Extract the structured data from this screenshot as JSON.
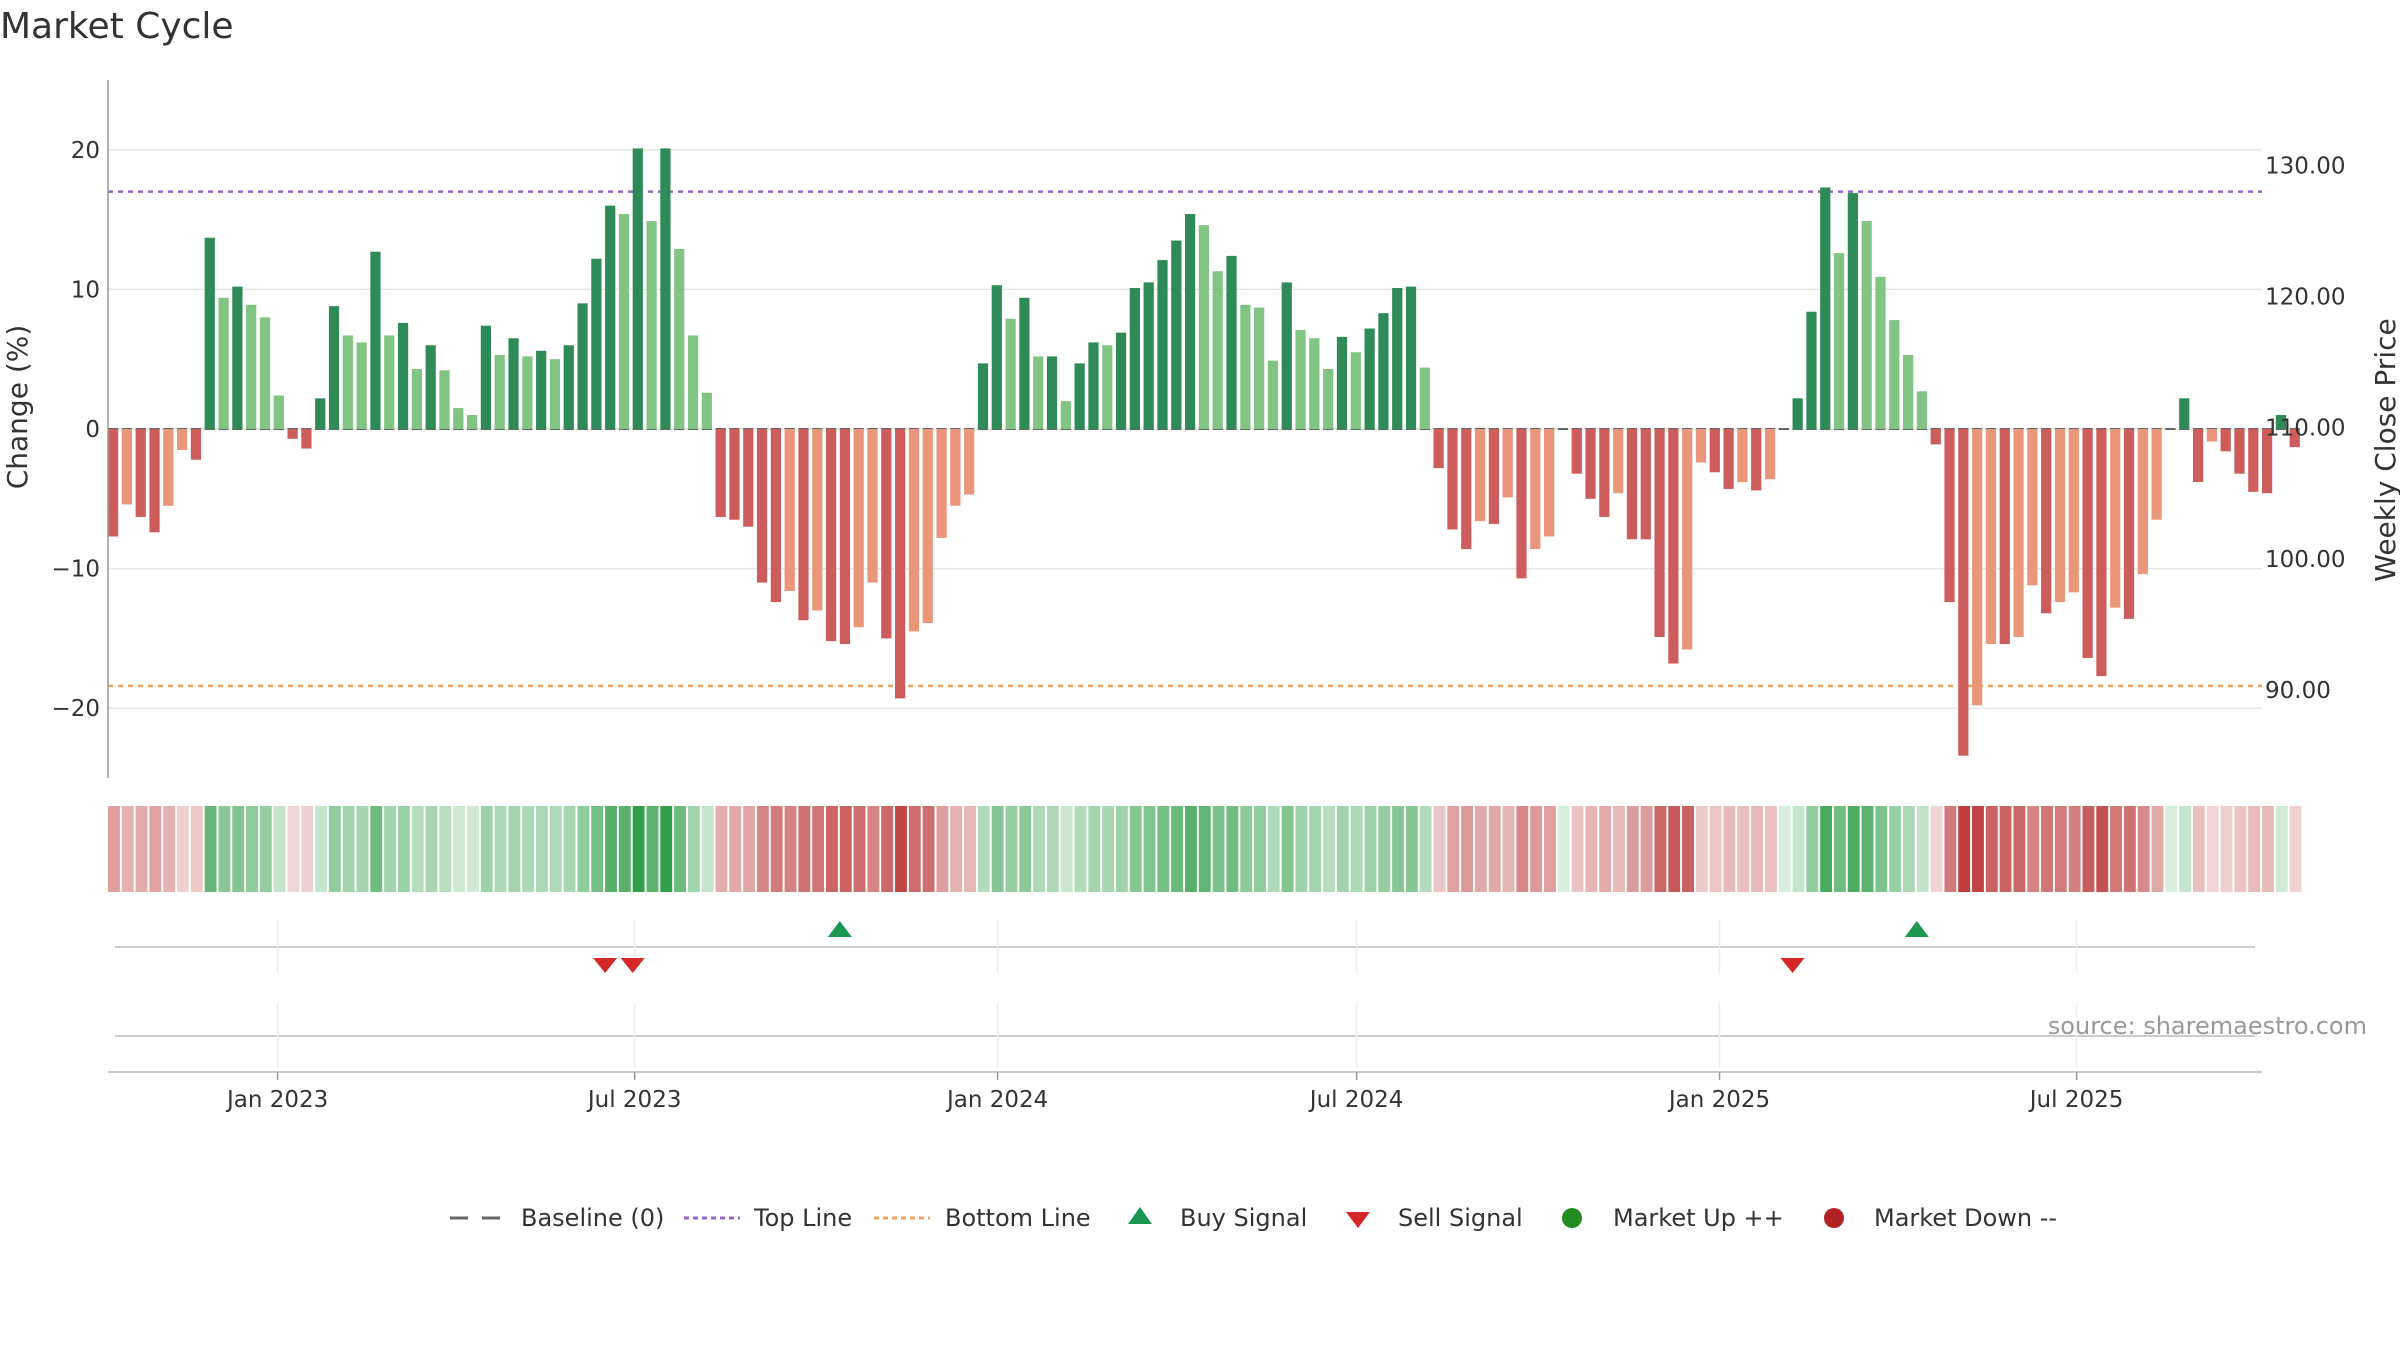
{
  "chart_data": {
    "type": "bar",
    "title": "Market Cycle",
    "ylabel": "Change (%)",
    "y2label": "Weekly Close Price",
    "ylim": [
      -25,
      25
    ],
    "y2lim": [
      83.3,
      136.5
    ],
    "yticks": [
      20,
      10,
      0,
      -10,
      -20
    ],
    "ytick_labels": [
      "20",
      "10",
      "0",
      "−10",
      "−20"
    ],
    "y2ticks": [
      130,
      120,
      110,
      100,
      90
    ],
    "y2tick_labels": [
      "130.00",
      "120.00",
      "110.00",
      "100.00",
      "90.00"
    ],
    "x_start": "2022-10-07",
    "x_end": "2025-10-03",
    "xticks": [
      {
        "date": "2023-01-01",
        "label": "Jan 2023"
      },
      {
        "date": "2023-07-01",
        "label": "Jul 2023"
      },
      {
        "date": "2024-01-01",
        "label": "Jan 2024"
      },
      {
        "date": "2024-07-01",
        "label": "Jul 2024"
      },
      {
        "date": "2025-01-01",
        "label": "Jan 2025"
      },
      {
        "date": "2025-07-01",
        "label": "Jul 2025"
      }
    ],
    "top_line": 17,
    "bottom_line": -18.4,
    "series": [
      {
        "name": "Weekly Change (%)",
        "start_date": "2022-10-07",
        "interval_days": 7,
        "values": [
          -7.7,
          -5.4,
          -6.3,
          -7.4,
          -5.5,
          -1.5,
          -2.2,
          13.7,
          9.4,
          10.2,
          8.9,
          8.0,
          2.4,
          -0.7,
          -1.4,
          2.2,
          8.8,
          6.7,
          6.2,
          12.7,
          6.7,
          7.6,
          4.3,
          6.0,
          4.2,
          1.5,
          1.0,
          7.4,
          5.3,
          6.5,
          5.2,
          5.6,
          5.0,
          6.0,
          9.0,
          12.2,
          16.0,
          15.4,
          20.1,
          14.9,
          20.1,
          12.9,
          6.7,
          2.6,
          -6.3,
          -6.5,
          -7.0,
          -11.0,
          -12.4,
          -11.6,
          -13.7,
          -13.0,
          -15.2,
          -15.4,
          -14.2,
          -11.0,
          -15.0,
          -19.3,
          -14.5,
          -13.9,
          -7.8,
          -5.5,
          -4.7,
          4.7,
          10.3,
          7.9,
          9.4,
          5.2,
          5.2,
          2.0,
          4.7,
          6.2,
          6.0,
          6.9,
          10.1,
          10.5,
          12.1,
          13.5,
          15.4,
          14.6,
          11.3,
          12.4,
          8.9,
          8.7,
          4.9,
          10.5,
          7.1,
          6.5,
          4.3,
          6.6,
          5.5,
          7.2,
          8.3,
          10.1,
          10.2,
          4.4,
          -2.8,
          -7.2,
          -8.6,
          -6.6,
          -6.8,
          -4.9,
          -10.7,
          -8.6,
          -7.7,
          0,
          -3.2,
          -5.0,
          -6.3,
          -4.6,
          -7.9,
          -7.9,
          -14.9,
          -16.8,
          -15.8,
          -2.4,
          -3.1,
          -4.3,
          -3.8,
          -4.4,
          -3.6,
          0,
          2.2,
          8.4,
          17.3,
          12.6,
          16.9,
          14.9,
          10.9,
          7.8,
          5.3,
          2.7,
          -1.1,
          -12.4,
          -23.4,
          -19.8,
          -15.4,
          -15.4,
          -14.9,
          -11.2,
          -13.2,
          -12.4,
          -11.7,
          -16.4,
          -17.7,
          -12.8,
          -13.6,
          -10.4,
          -6.5,
          0,
          2.2,
          -3.8,
          -0.9,
          -1.6,
          -3.2,
          -4.5,
          -4.6,
          1.0,
          -1.3
        ]
      }
    ],
    "buy_signals": [
      "2023-10-13",
      "2025-04-11"
    ],
    "sell_signals": [
      "2023-06-16",
      "2023-06-30",
      "2025-02-07"
    ],
    "source_text": "source: sharemaestro.com",
    "legend": [
      {
        "key": "baseline",
        "label": "Baseline (0)"
      },
      {
        "key": "top",
        "label": "Top Line"
      },
      {
        "key": "bottom",
        "label": "Bottom Line"
      },
      {
        "key": "buy",
        "label": "Buy Signal"
      },
      {
        "key": "sell",
        "label": "Sell Signal"
      },
      {
        "key": "up",
        "label": "Market Up ++"
      },
      {
        "key": "down",
        "label": "Market Down --"
      }
    ],
    "colors": {
      "strong_up": "#2e8b57",
      "up": "#82c483",
      "strong_down": "#cd5c5c",
      "down": "#e9967a",
      "top_line": "#9467bd",
      "bottom_line": "#f4a460",
      "buy": "#1a9850",
      "sell": "#d62728",
      "market_up": "#228b22",
      "market_down": "#b22222",
      "baseline": "#666666",
      "grid": "#e6e6e6"
    }
  }
}
